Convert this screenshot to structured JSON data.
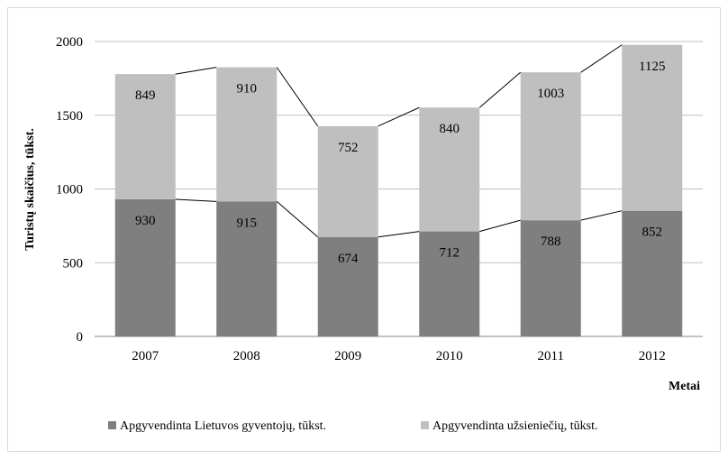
{
  "chart_data": {
    "type": "bar",
    "stacked": true,
    "title": "",
    "xlabel": "Metai",
    "ylabel": "Turistų skaičius, tūkst.",
    "ylim": [
      0,
      2000
    ],
    "yticks": [
      0,
      500,
      1000,
      1500,
      2000
    ],
    "categories": [
      "2007",
      "2008",
      "2009",
      "2010",
      "2011",
      "2012"
    ],
    "series": [
      {
        "name": "Apgyvendinta Lietuvos gyventojų, tūkst.",
        "color": "#7f7f7f",
        "values": [
          930,
          915,
          674,
          712,
          788,
          852
        ]
      },
      {
        "name": "Apgyvendinta užsieniečių, tūkst.",
        "color": "#bfbfbf",
        "values": [
          849,
          910,
          752,
          840,
          1003,
          1125
        ]
      }
    ],
    "series_lines": true,
    "grid": true,
    "legend_position": "bottom"
  }
}
